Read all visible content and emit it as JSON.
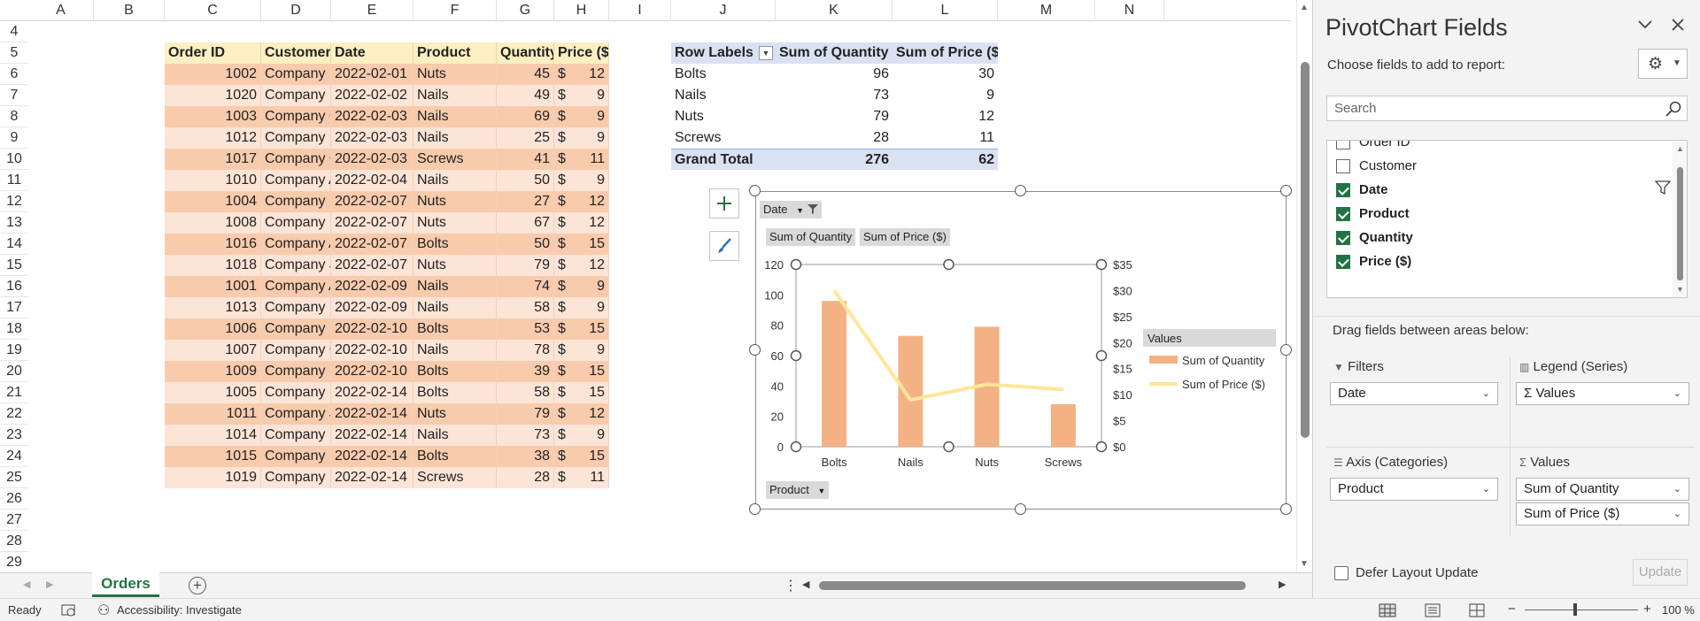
{
  "columns": [
    "A",
    "B",
    "C",
    "D",
    "E",
    "F",
    "G",
    "H",
    "I",
    "J",
    "K",
    "L",
    "M",
    "N"
  ],
  "rows": [
    "4",
    "5",
    "6",
    "7",
    "8",
    "9",
    "10",
    "11",
    "12",
    "13",
    "14",
    "15",
    "16",
    "17",
    "18",
    "19",
    "20",
    "21",
    "22",
    "23",
    "24",
    "25",
    "26",
    "27",
    "28",
    "29"
  ],
  "source_table": {
    "headers": [
      "Order ID",
      "Customer",
      "Date",
      "Product",
      "Quantity",
      "Price ($)"
    ],
    "currency_symbol": "$",
    "rows": [
      [
        "1002",
        "Company B",
        "2022-02-01",
        "Nuts",
        "45",
        "12"
      ],
      [
        "1020",
        "Company D",
        "2022-02-02",
        "Nails",
        "49",
        "9"
      ],
      [
        "1003",
        "Company C",
        "2022-02-03",
        "Nails",
        "69",
        "9"
      ],
      [
        "1012",
        "Company K",
        "2022-02-03",
        "Nails",
        "25",
        "9"
      ],
      [
        "1017",
        "Company C",
        "2022-02-03",
        "Screws",
        "41",
        "11"
      ],
      [
        "1010",
        "Company A",
        "2022-02-04",
        "Nails",
        "50",
        "9"
      ],
      [
        "1004",
        "Company D",
        "2022-02-07",
        "Nuts",
        "27",
        "12"
      ],
      [
        "1008",
        "Company H",
        "2022-02-07",
        "Nuts",
        "67",
        "12"
      ],
      [
        "1016",
        "Company A",
        "2022-02-07",
        "Bolts",
        "50",
        "15"
      ],
      [
        "1018",
        "Company J",
        "2022-02-07",
        "Nuts",
        "79",
        "12"
      ],
      [
        "1001",
        "Company A",
        "2022-02-09",
        "Nails",
        "74",
        "9"
      ],
      [
        "1013",
        "Company L",
        "2022-02-09",
        "Nails",
        "58",
        "9"
      ],
      [
        "1006",
        "Company F",
        "2022-02-10",
        "Bolts",
        "53",
        "15"
      ],
      [
        "1007",
        "Company G",
        "2022-02-10",
        "Nails",
        "78",
        "9"
      ],
      [
        "1009",
        "Company I",
        "2022-02-10",
        "Bolts",
        "39",
        "15"
      ],
      [
        "1005",
        "Company E",
        "2022-02-14",
        "Bolts",
        "58",
        "15"
      ],
      [
        "1011",
        "Company J",
        "2022-02-14",
        "Nuts",
        "79",
        "12"
      ],
      [
        "1014",
        "Company M",
        "2022-02-14",
        "Nails",
        "73",
        "9"
      ],
      [
        "1015",
        "Company B",
        "2022-02-14",
        "Bolts",
        "38",
        "15"
      ],
      [
        "1019",
        "Company L",
        "2022-02-14",
        "Screws",
        "28",
        "11"
      ]
    ]
  },
  "pivot_table": {
    "headers": [
      "Row Labels",
      "Sum of Quantity",
      "Sum of Price ($)"
    ],
    "rows": [
      [
        "Bolts",
        "96",
        "30"
      ],
      [
        "Nails",
        "73",
        "9"
      ],
      [
        "Nuts",
        "79",
        "12"
      ],
      [
        "Screws",
        "28",
        "11"
      ]
    ],
    "total": [
      "Grand Total",
      "276",
      "62"
    ]
  },
  "chart": {
    "field_buttons": {
      "date": "Date",
      "qty": "Sum of Quantity",
      "price": "Sum of Price ($)",
      "product": "Product"
    },
    "legend_title": "Values",
    "left_ticks": [
      "120",
      "100",
      "80",
      "60",
      "40",
      "20",
      "0"
    ],
    "right_ticks": [
      "$35",
      "$30",
      "$25",
      "$20",
      "$15",
      "$10",
      "$5",
      "$0"
    ],
    "colors": {
      "bars": "#f4b183",
      "line": "#ffe699"
    }
  },
  "chart_data": {
    "type": "bar",
    "categories": [
      "Bolts",
      "Nails",
      "Nuts",
      "Screws"
    ],
    "series": [
      {
        "name": "Sum of Quantity",
        "type": "bar",
        "axis": "left",
        "values": [
          96,
          73,
          79,
          28
        ]
      },
      {
        "name": "Sum of Price ($)",
        "type": "line",
        "axis": "right",
        "values": [
          30,
          9,
          12,
          11
        ]
      }
    ],
    "ylim": [
      0,
      120
    ],
    "y2lim": [
      0,
      35
    ],
    "legend": "right",
    "grid": false
  },
  "sheet_tabs": {
    "active": "Orders"
  },
  "panel": {
    "title": "PivotChart Fields",
    "choose_label": "Choose fields to add to report:",
    "search_placeholder": "Search",
    "fields": [
      {
        "label": "Order ID",
        "checked": false
      },
      {
        "label": "Customer",
        "checked": false
      },
      {
        "label": "Date",
        "checked": true
      },
      {
        "label": "Product",
        "checked": true
      },
      {
        "label": "Quantity",
        "checked": true
      },
      {
        "label": "Price ($)",
        "checked": true
      }
    ],
    "drag_label": "Drag fields between areas below:",
    "areas": {
      "filters": {
        "title": "Filters",
        "items": [
          "Date"
        ]
      },
      "legend": {
        "title": "Legend (Series)",
        "items": [
          "Σ Values"
        ]
      },
      "axis": {
        "title": "Axis (Categories)",
        "items": [
          "Product"
        ]
      },
      "values": {
        "title": "Values",
        "items": [
          "Sum of Quantity",
          "Sum of Price ($)"
        ]
      }
    },
    "defer_label": "Defer Layout Update",
    "update_label": "Update"
  },
  "status": {
    "ready": "Ready",
    "accessibility": "Accessibility: Investigate",
    "zoom": "100 %"
  }
}
